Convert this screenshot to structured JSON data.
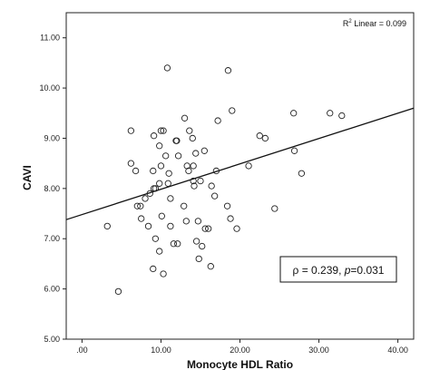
{
  "chart_data": {
    "type": "scatter",
    "xlabel": "Monocyte HDL Ratio",
    "ylabel": "CAVI",
    "xlim": [
      -2,
      42
    ],
    "ylim": [
      5.0,
      11.5
    ],
    "x_ticks": [
      ".00",
      "10.00",
      "20.00",
      "30.00",
      "40.00"
    ],
    "y_ticks": [
      "5.00",
      "6.00",
      "7.00",
      "8.00",
      "9.00",
      "10.00",
      "11.00"
    ],
    "x_tick_values": [
      0,
      10,
      20,
      30,
      40
    ],
    "y_tick_values": [
      5,
      6,
      7,
      8,
      9,
      10,
      11
    ],
    "fit_line": {
      "label": "R² Linear = 0.099",
      "r2_prefix": "R",
      "r2_sup": "2",
      "r2_suffix": " Linear = 0.099",
      "x": [
        -2,
        42
      ],
      "y": [
        7.38,
        9.6
      ]
    },
    "statistic": {
      "text_rho": "ρ = 0.239, ",
      "text_p": "p",
      "text_p_value": "=0.031"
    },
    "points": [
      {
        "x": 10.8,
        "y": 10.4
      },
      {
        "x": 18.5,
        "y": 10.35
      },
      {
        "x": 19.0,
        "y": 9.55
      },
      {
        "x": 26.8,
        "y": 9.5
      },
      {
        "x": 31.4,
        "y": 9.5
      },
      {
        "x": 32.9,
        "y": 9.45
      },
      {
        "x": 13.0,
        "y": 9.4
      },
      {
        "x": 17.2,
        "y": 9.35
      },
      {
        "x": 6.2,
        "y": 9.15
      },
      {
        "x": 10.0,
        "y": 9.15
      },
      {
        "x": 10.3,
        "y": 9.15
      },
      {
        "x": 13.6,
        "y": 9.15
      },
      {
        "x": 9.1,
        "y": 9.05
      },
      {
        "x": 22.5,
        "y": 9.05
      },
      {
        "x": 14.0,
        "y": 9.0
      },
      {
        "x": 23.2,
        "y": 9.0
      },
      {
        "x": 11.9,
        "y": 8.95
      },
      {
        "x": 12.0,
        "y": 8.95
      },
      {
        "x": 9.8,
        "y": 8.85
      },
      {
        "x": 15.5,
        "y": 8.75
      },
      {
        "x": 26.9,
        "y": 8.75
      },
      {
        "x": 10.6,
        "y": 8.65
      },
      {
        "x": 12.2,
        "y": 8.65
      },
      {
        "x": 14.4,
        "y": 8.7
      },
      {
        "x": 6.2,
        "y": 8.5
      },
      {
        "x": 10.0,
        "y": 8.45
      },
      {
        "x": 13.3,
        "y": 8.45
      },
      {
        "x": 14.1,
        "y": 8.45
      },
      {
        "x": 21.1,
        "y": 8.45
      },
      {
        "x": 6.8,
        "y": 8.35
      },
      {
        "x": 9.0,
        "y": 8.35
      },
      {
        "x": 13.5,
        "y": 8.35
      },
      {
        "x": 17.0,
        "y": 8.35
      },
      {
        "x": 11.0,
        "y": 8.3
      },
      {
        "x": 27.8,
        "y": 8.3
      },
      {
        "x": 14.1,
        "y": 8.15
      },
      {
        "x": 15.0,
        "y": 8.15
      },
      {
        "x": 9.8,
        "y": 8.1
      },
      {
        "x": 10.9,
        "y": 8.1
      },
      {
        "x": 14.2,
        "y": 8.05
      },
      {
        "x": 16.4,
        "y": 8.05
      },
      {
        "x": 9.1,
        "y": 8.0
      },
      {
        "x": 9.3,
        "y": 8.0
      },
      {
        "x": 8.6,
        "y": 7.9
      },
      {
        "x": 16.8,
        "y": 7.85
      },
      {
        "x": 8.0,
        "y": 7.8
      },
      {
        "x": 11.2,
        "y": 7.8
      },
      {
        "x": 7.0,
        "y": 7.65
      },
      {
        "x": 7.4,
        "y": 7.65
      },
      {
        "x": 12.9,
        "y": 7.65
      },
      {
        "x": 18.4,
        "y": 7.65
      },
      {
        "x": 24.4,
        "y": 7.6
      },
      {
        "x": 10.1,
        "y": 7.45
      },
      {
        "x": 7.5,
        "y": 7.4
      },
      {
        "x": 18.8,
        "y": 7.4
      },
      {
        "x": 13.2,
        "y": 7.35
      },
      {
        "x": 14.7,
        "y": 7.35
      },
      {
        "x": 3.2,
        "y": 7.25
      },
      {
        "x": 8.4,
        "y": 7.25
      },
      {
        "x": 11.2,
        "y": 7.25
      },
      {
        "x": 19.6,
        "y": 7.2
      },
      {
        "x": 15.6,
        "y": 7.2
      },
      {
        "x": 16.0,
        "y": 7.2
      },
      {
        "x": 9.3,
        "y": 7.0
      },
      {
        "x": 14.5,
        "y": 6.95
      },
      {
        "x": 11.6,
        "y": 6.9
      },
      {
        "x": 12.1,
        "y": 6.9
      },
      {
        "x": 15.2,
        "y": 6.85
      },
      {
        "x": 9.8,
        "y": 6.75
      },
      {
        "x": 14.8,
        "y": 6.6
      },
      {
        "x": 16.3,
        "y": 6.45
      },
      {
        "x": 9.0,
        "y": 6.4
      },
      {
        "x": 10.3,
        "y": 6.3
      },
      {
        "x": 4.6,
        "y": 5.95
      }
    ]
  }
}
